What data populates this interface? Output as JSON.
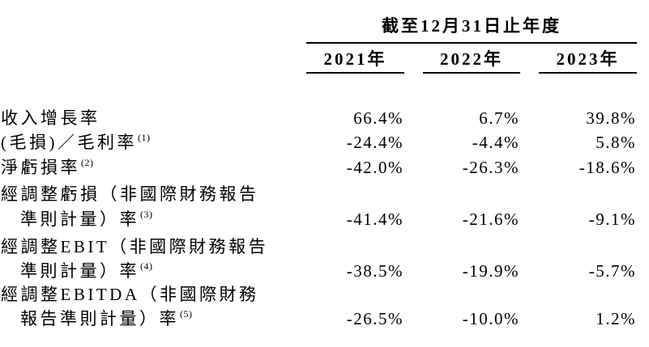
{
  "page": {
    "background_color": "#ffffff",
    "text_color": "#000000"
  },
  "table": {
    "header": {
      "period_title": "截至12月31日止年度",
      "years": [
        "2021年",
        "2022年",
        "2023年"
      ]
    },
    "rows": [
      {
        "label_lines": [
          "收入增長率"
        ],
        "footnote": "",
        "values": [
          "66.4%",
          "6.7%",
          "39.8%"
        ]
      },
      {
        "label_lines": [
          "(毛損)／毛利率"
        ],
        "footnote": "(1)",
        "values": [
          "-24.4%",
          "-4.4%",
          "5.8%"
        ]
      },
      {
        "label_lines": [
          "淨虧損率"
        ],
        "footnote": "(2)",
        "values": [
          "-42.0%",
          "-26.3%",
          "-18.6%"
        ]
      },
      {
        "label_lines": [
          "經調整虧損（非國際財務報告",
          "準則計量）率"
        ],
        "footnote": "(3)",
        "values": [
          "-41.4%",
          "-21.6%",
          "-9.1%"
        ]
      },
      {
        "label_lines": [
          "經調整EBIT（非國際財務報告",
          "準則計量）率"
        ],
        "footnote": "(4)",
        "values": [
          "-38.5%",
          "-19.9%",
          "-5.7%"
        ]
      },
      {
        "label_lines": [
          "經調整EBITDA（非國際財務",
          "報告準則計量）率"
        ],
        "footnote": "(5)",
        "values": [
          "-26.5%",
          "-10.0%",
          "1.2%"
        ]
      }
    ]
  }
}
